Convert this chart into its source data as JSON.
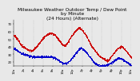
{
  "title": "Milwaukee Weather Outdoor Temp / Dew Point",
  "subtitle": "by Minute",
  "subtitle2": "(24 Hours) (Alternate)",
  "bg_color": "#e8e8e8",
  "plot_bg": "#e8e8e8",
  "grid_color": "#888888",
  "temp_color": "#cc0000",
  "dew_color": "#0000cc",
  "ylim": [
    15,
    75
  ],
  "yticks": [
    20,
    30,
    40,
    50,
    60,
    70
  ],
  "title_fontsize": 4.2,
  "tick_fontsize": 2.8,
  "marker_size": 0.5,
  "temp_data": [
    55,
    54,
    52,
    50,
    48,
    45,
    43,
    41,
    40,
    39,
    38,
    37,
    36,
    36,
    35,
    35,
    36,
    37,
    38,
    40,
    42,
    44,
    46,
    48,
    50,
    52,
    54,
    55,
    56,
    57,
    58,
    58,
    58,
    57,
    56,
    55,
    53,
    51,
    49,
    47,
    45,
    43,
    42,
    42,
    43,
    45,
    47,
    50,
    53,
    55,
    57,
    59,
    61,
    63,
    64,
    65,
    64,
    63,
    61,
    59,
    57,
    55,
    52,
    49,
    46,
    43,
    40,
    38,
    36,
    34,
    32,
    30,
    28,
    27,
    26,
    25,
    24,
    23,
    22,
    22,
    23,
    25,
    27,
    29,
    31,
    33,
    35,
    37,
    38,
    39,
    40,
    40,
    39,
    38,
    36,
    34,
    32,
    30,
    28,
    26
  ],
  "dew_data": [
    38,
    37,
    36,
    35,
    34,
    33,
    32,
    31,
    31,
    30,
    30,
    29,
    29,
    28,
    28,
    27,
    27,
    27,
    27,
    27,
    27,
    27,
    27,
    27,
    27,
    27,
    27,
    27,
    27,
    27,
    27,
    27,
    27,
    26,
    26,
    25,
    24,
    23,
    22,
    21,
    20,
    19,
    18,
    18,
    18,
    19,
    20,
    21,
    23,
    25,
    27,
    29,
    31,
    33,
    35,
    37,
    38,
    38,
    37,
    36,
    35,
    33,
    31,
    29,
    27,
    25,
    23,
    21,
    19,
    18,
    17,
    16,
    15,
    15,
    15,
    15,
    15,
    15,
    16,
    16,
    17,
    18,
    19,
    20,
    21,
    22,
    23,
    24,
    25,
    25,
    25,
    24,
    23,
    22,
    21,
    20,
    19,
    18,
    17,
    16
  ],
  "xtick_labels": [
    "12a",
    "2a",
    "4a",
    "6a",
    "8a",
    "10a",
    "12p",
    "2p",
    "4p",
    "6p",
    "8p",
    "10p",
    "12a"
  ]
}
